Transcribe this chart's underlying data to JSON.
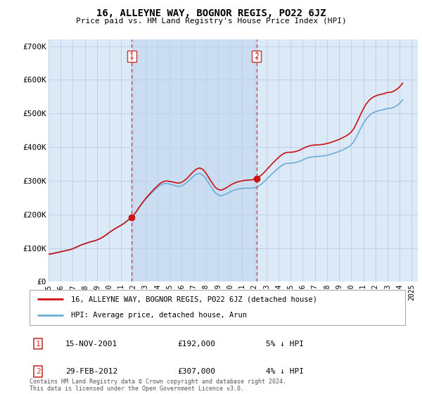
{
  "title": "16, ALLEYNE WAY, BOGNOR REGIS, PO22 6JZ",
  "subtitle": "Price paid vs. HM Land Registry's House Price Index (HPI)",
  "ylabel_ticks": [
    "£0",
    "£100K",
    "£200K",
    "£300K",
    "£400K",
    "£500K",
    "£600K",
    "£700K"
  ],
  "ytick_values": [
    0,
    100000,
    200000,
    300000,
    400000,
    500000,
    600000,
    700000
  ],
  "ylim": [
    0,
    720000
  ],
  "xlim_start": 1995.0,
  "xlim_end": 2025.5,
  "legend_line1": "16, ALLEYNE WAY, BOGNOR REGIS, PO22 6JZ (detached house)",
  "legend_line2": "HPI: Average price, detached house, Arun",
  "transaction1_date": "15-NOV-2001",
  "transaction1_price": "£192,000",
  "transaction1_hpi": "5% ↓ HPI",
  "transaction1_x": 2001.88,
  "transaction1_y": 192000,
  "transaction2_date": "29-FEB-2012",
  "transaction2_price": "£307,000",
  "transaction2_hpi": "4% ↓ HPI",
  "transaction2_x": 2012.17,
  "transaction2_y": 307000,
  "vline1_x": 2001.88,
  "vline2_x": 2012.17,
  "hpi_color": "#6baed6",
  "price_color": "#cc1111",
  "vline_color": "#cc3333",
  "background_color": "#ffffff",
  "plot_bg_color": "#dce9f7",
  "grid_color": "#c0d0e8",
  "between_fill_color": "#c8ddf0",
  "footer_text": "Contains HM Land Registry data © Crown copyright and database right 2024.\nThis data is licensed under the Open Government Licence v3.0.",
  "hpi_years": [
    1995,
    1995.25,
    1995.5,
    1995.75,
    1996,
    1996.25,
    1996.5,
    1996.75,
    1997,
    1997.25,
    1997.5,
    1997.75,
    1998,
    1998.25,
    1998.5,
    1998.75,
    1999,
    1999.25,
    1999.5,
    1999.75,
    2000,
    2000.25,
    2000.5,
    2000.75,
    2001,
    2001.25,
    2001.5,
    2001.75,
    2002,
    2002.25,
    2002.5,
    2002.75,
    2003,
    2003.25,
    2003.5,
    2003.75,
    2004,
    2004.25,
    2004.5,
    2004.75,
    2005,
    2005.25,
    2005.5,
    2005.75,
    2006,
    2006.25,
    2006.5,
    2006.75,
    2007,
    2007.25,
    2007.5,
    2007.75,
    2008,
    2008.25,
    2008.5,
    2008.75,
    2009,
    2009.25,
    2009.5,
    2009.75,
    2010,
    2010.25,
    2010.5,
    2010.75,
    2011,
    2011.25,
    2011.5,
    2011.75,
    2012,
    2012.25,
    2012.5,
    2012.75,
    2013,
    2013.25,
    2013.5,
    2013.75,
    2014,
    2014.25,
    2014.5,
    2014.75,
    2015,
    2015.25,
    2015.5,
    2015.75,
    2016,
    2016.25,
    2016.5,
    2016.75,
    2017,
    2017.25,
    2017.5,
    2017.75,
    2018,
    2018.25,
    2018.5,
    2018.75,
    2019,
    2019.25,
    2019.5,
    2019.75,
    2020,
    2020.25,
    2020.5,
    2020.75,
    2021,
    2021.25,
    2021.5,
    2021.75,
    2022,
    2022.25,
    2022.5,
    2022.75,
    2023,
    2023.25,
    2023.5,
    2023.75,
    2024,
    2024.25
  ],
  "hpi_values": [
    82000,
    83000,
    85000,
    87000,
    89000,
    91000,
    93000,
    95000,
    98000,
    102000,
    106000,
    110000,
    113000,
    116000,
    119000,
    121000,
    124000,
    128000,
    133000,
    139000,
    146000,
    152000,
    158000,
    163000,
    168000,
    174000,
    181000,
    188000,
    196000,
    208000,
    221000,
    233000,
    244000,
    254000,
    263000,
    272000,
    280000,
    287000,
    291000,
    292000,
    290000,
    288000,
    285000,
    283000,
    285000,
    290000,
    297000,
    306000,
    314000,
    320000,
    322000,
    317000,
    306000,
    292000,
    278000,
    265000,
    258000,
    255000,
    258000,
    262000,
    267000,
    271000,
    274000,
    276000,
    277000,
    278000,
    278000,
    278000,
    279000,
    282000,
    288000,
    295000,
    304000,
    313000,
    322000,
    330000,
    338000,
    345000,
    350000,
    352000,
    352000,
    353000,
    355000,
    358000,
    362000,
    366000,
    369000,
    371000,
    372000,
    372000,
    373000,
    374000,
    376000,
    378000,
    381000,
    384000,
    387000,
    391000,
    395000,
    400000,
    407000,
    418000,
    435000,
    453000,
    470000,
    484000,
    494000,
    501000,
    505000,
    508000,
    510000,
    512000,
    515000,
    515000,
    518000,
    523000,
    530000,
    540000
  ],
  "xtick_years": [
    1995,
    1996,
    1997,
    1998,
    1999,
    2000,
    2001,
    2002,
    2003,
    2004,
    2005,
    2006,
    2007,
    2008,
    2009,
    2010,
    2011,
    2012,
    2013,
    2014,
    2015,
    2016,
    2017,
    2018,
    2019,
    2020,
    2021,
    2022,
    2023,
    2024,
    2025
  ]
}
